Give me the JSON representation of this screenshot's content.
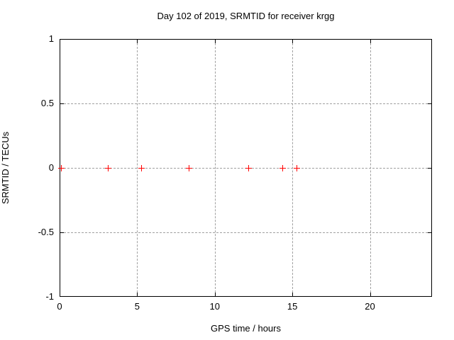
{
  "chart_data": {
    "type": "scatter",
    "title": "Day 102 of 2019, SRMTID for receiver krgg",
    "xlabel": "GPS time / hours",
    "ylabel": "SRMTID / TECUs",
    "xlim": [
      0,
      24
    ],
    "ylim": [
      -1,
      1
    ],
    "xticks": [
      {
        "value": 0,
        "label": "0"
      },
      {
        "value": 5,
        "label": "5"
      },
      {
        "value": 10,
        "label": "10"
      },
      {
        "value": 15,
        "label": "15"
      },
      {
        "value": 20,
        "label": "20"
      }
    ],
    "yticks": [
      {
        "value": 1,
        "label": "1"
      },
      {
        "value": 0.5,
        "label": "0.5"
      },
      {
        "value": 0,
        "label": "0"
      },
      {
        "value": -0.5,
        "label": "-0.5"
      },
      {
        "value": -1,
        "label": "-1"
      }
    ],
    "grid": true,
    "legend_position": "none",
    "series": [
      {
        "name": "SRMTID",
        "marker": "plus",
        "color": "#ff0000",
        "points": [
          {
            "x": 0.1,
            "y": 0
          },
          {
            "x": 3.1,
            "y": 0
          },
          {
            "x": 5.25,
            "y": 0
          },
          {
            "x": 8.3,
            "y": 0
          },
          {
            "x": 12.15,
            "y": 0
          },
          {
            "x": 14.35,
            "y": 0
          },
          {
            "x": 15.25,
            "y": 0
          }
        ]
      }
    ]
  },
  "colors": {
    "background": "#ffffff",
    "axis": "#000000",
    "grid": "#a0a0a0",
    "text": "#000000",
    "marker": "#ff0000"
  }
}
